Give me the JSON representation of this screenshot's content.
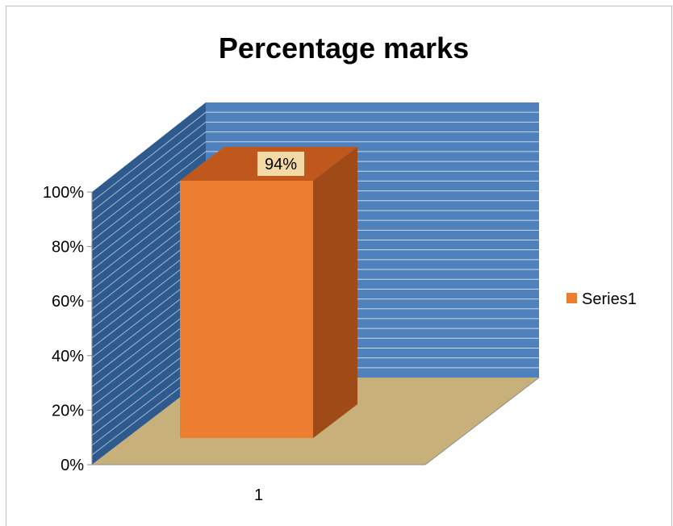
{
  "chart_data": {
    "type": "bar",
    "title": "Percentage marks",
    "categories": [
      "1"
    ],
    "series": [
      {
        "name": "Series1",
        "values": [
          0.94
        ],
        "color": "#ED7D31"
      }
    ],
    "data_labels": [
      "94%"
    ],
    "y_ticks": [
      "0%",
      "20%",
      "40%",
      "60%",
      "80%",
      "100%"
    ],
    "ylim": [
      0,
      1
    ],
    "grid": true,
    "three_d": true,
    "legend_position": "right",
    "colors": {
      "back_wall": "#4F81BD",
      "side_wall": "#2E5A8E",
      "floor": "#C8B07A",
      "bar_front": "#ED7D31",
      "bar_top": "#C0581D",
      "bar_side": "#A04A18",
      "label_box": "#F3D9A4",
      "grid_line": "#C9D7EA"
    }
  }
}
